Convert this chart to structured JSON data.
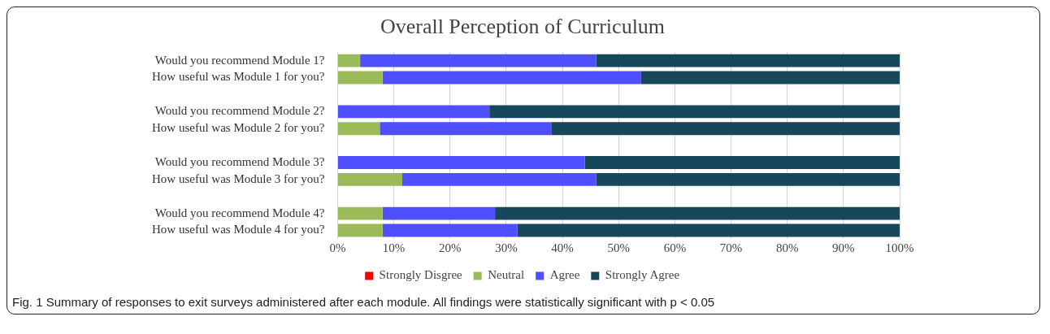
{
  "chart_data": {
    "type": "bar",
    "orientation": "horizontal",
    "stacked": true,
    "title": "Overall Perception of Curriculum",
    "categories": [
      "Would you recommend Module 1?",
      "How useful was Module 1 for you?",
      null,
      "Would you recommend Module 2?",
      "How useful was Module 2 for you?",
      null,
      "Would you recommend Module 3?",
      "How useful was Module 3 for you?",
      null,
      "Would you recommend Module 4?",
      "How useful was Module 4 for you?"
    ],
    "series": [
      {
        "name": "Strongly Disgree",
        "color": "#ff0000",
        "values": [
          0,
          0,
          null,
          0,
          0,
          null,
          0,
          0,
          null,
          0,
          0
        ]
      },
      {
        "name": "Neutral",
        "color": "#9bbb59",
        "values": [
          4,
          8,
          null,
          0,
          7.5,
          null,
          0,
          11.5,
          null,
          8,
          8
        ]
      },
      {
        "name": "Agree",
        "color": "#4f4fff",
        "values": [
          42,
          46,
          null,
          27,
          30.5,
          null,
          44,
          34.5,
          null,
          20,
          24
        ]
      },
      {
        "name": "Strongly Agree",
        "color": "#17475a",
        "values": [
          54,
          46,
          null,
          73,
          62,
          null,
          56,
          54,
          null,
          72,
          68
        ]
      }
    ],
    "xlim": [
      0,
      100
    ],
    "xticks": [
      {
        "value": 0,
        "label": "0%"
      },
      {
        "value": 10,
        "label": "10%"
      },
      {
        "value": 20,
        "label": "20%"
      },
      {
        "value": 30,
        "label": "30%"
      },
      {
        "value": 40,
        "label": "40%"
      },
      {
        "value": 50,
        "label": "50%"
      },
      {
        "value": 60,
        "label": "60%"
      },
      {
        "value": 70,
        "label": "70%"
      },
      {
        "value": 80,
        "label": "80%"
      },
      {
        "value": 90,
        "label": "90%"
      },
      {
        "value": 100,
        "label": "100%"
      }
    ],
    "grid": "x",
    "legend": "bottom",
    "annotations": [
      "Fig. 1 Summary of responses to exit surveys administered after each module. All findings were statistically significant with p < 0.05"
    ]
  }
}
